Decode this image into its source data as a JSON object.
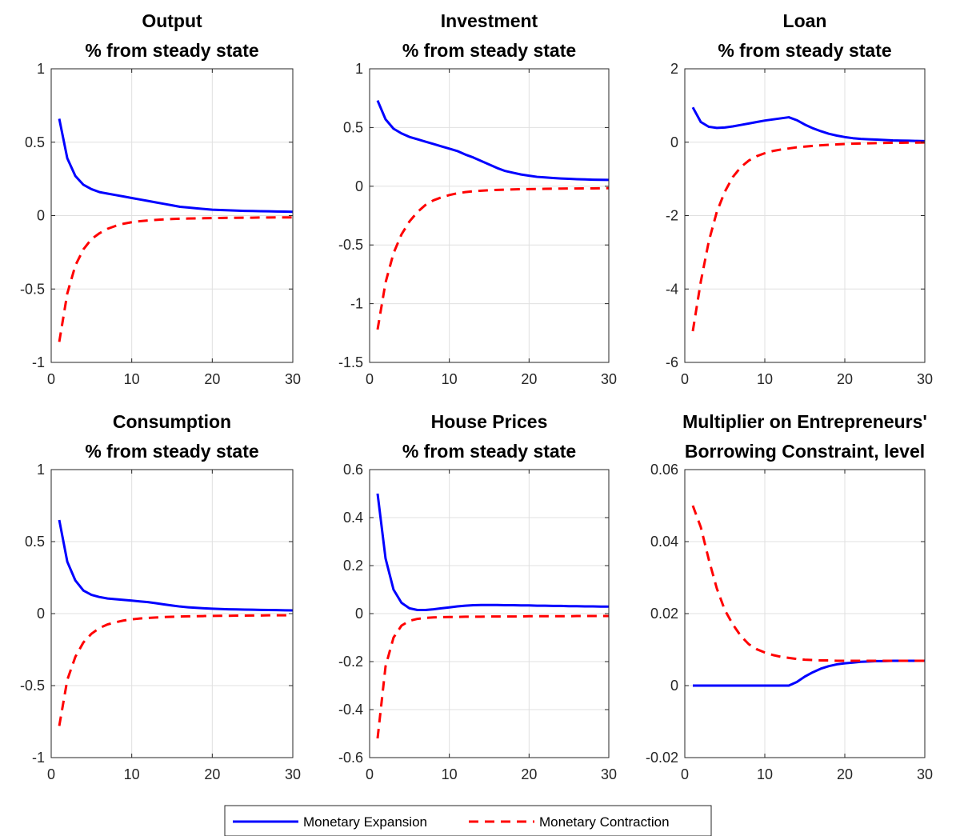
{
  "colors": {
    "expansion": "#0000ff",
    "contraction": "#ff0000",
    "grid": "#e0e0e0",
    "axis": "#262626"
  },
  "legend": {
    "placement": "bottom-center",
    "entries": [
      {
        "label": "Monetary Expansion",
        "color": "#0000ff",
        "style": "solid"
      },
      {
        "label": "Monetary Contraction",
        "color": "#ff0000",
        "style": "dashed"
      }
    ]
  },
  "chart_data": [
    {
      "type": "line",
      "title": [
        "Output",
        "% from steady state"
      ],
      "xlim": [
        0,
        30
      ],
      "ylim": [
        -1,
        1
      ],
      "xticks": [
        0,
        10,
        20,
        30
      ],
      "yticks": [
        -1,
        -0.5,
        0,
        0.5,
        1
      ],
      "ytick_labels": [
        "-1",
        "-0.5",
        "0",
        "0.5",
        "1"
      ],
      "grid": true,
      "series": [
        {
          "name": "Monetary Expansion",
          "x": [
            1,
            2,
            3,
            4,
            5,
            6,
            7,
            8,
            9,
            10,
            11,
            12,
            13,
            14,
            15,
            16,
            17,
            18,
            19,
            20,
            21,
            22,
            23,
            24,
            25,
            26,
            27,
            28,
            29,
            30
          ],
          "y": [
            0.66,
            0.39,
            0.27,
            0.21,
            0.18,
            0.16,
            0.15,
            0.14,
            0.13,
            0.12,
            0.11,
            0.1,
            0.09,
            0.08,
            0.07,
            0.06,
            0.055,
            0.05,
            0.045,
            0.04,
            0.038,
            0.036,
            0.034,
            0.032,
            0.031,
            0.03,
            0.029,
            0.028,
            0.027,
            0.026
          ]
        },
        {
          "name": "Monetary Contraction",
          "x": [
            1,
            2,
            3,
            4,
            5,
            6,
            7,
            8,
            9,
            10,
            11,
            12,
            13,
            14,
            15,
            16,
            17,
            18,
            19,
            20,
            21,
            22,
            23,
            24,
            25,
            26,
            27,
            28,
            29,
            30
          ],
          "y": [
            -0.86,
            -0.53,
            -0.34,
            -0.23,
            -0.16,
            -0.12,
            -0.09,
            -0.07,
            -0.055,
            -0.045,
            -0.038,
            -0.033,
            -0.029,
            -0.026,
            -0.023,
            -0.021,
            -0.02,
            -0.019,
            -0.018,
            -0.017,
            -0.016,
            -0.015,
            -0.015,
            -0.014,
            -0.014,
            -0.013,
            -0.013,
            -0.012,
            -0.012,
            -0.012
          ]
        }
      ]
    },
    {
      "type": "line",
      "title": [
        "Investment",
        "% from steady state"
      ],
      "xlim": [
        0,
        30
      ],
      "ylim": [
        -1.5,
        1
      ],
      "xticks": [
        0,
        10,
        20,
        30
      ],
      "yticks": [
        -1.5,
        -1,
        -0.5,
        0,
        0.5,
        1
      ],
      "ytick_labels": [
        "-1.5",
        "-1",
        "-0.5",
        "0",
        "0.5",
        "1"
      ],
      "grid": true,
      "series": [
        {
          "name": "Monetary Expansion",
          "x": [
            1,
            2,
            3,
            4,
            5,
            6,
            7,
            8,
            9,
            10,
            11,
            12,
            13,
            14,
            15,
            16,
            17,
            18,
            19,
            20,
            21,
            22,
            23,
            24,
            25,
            26,
            27,
            28,
            29,
            30
          ],
          "y": [
            0.73,
            0.57,
            0.49,
            0.45,
            0.42,
            0.4,
            0.38,
            0.36,
            0.34,
            0.32,
            0.3,
            0.27,
            0.245,
            0.215,
            0.185,
            0.155,
            0.13,
            0.115,
            0.1,
            0.09,
            0.08,
            0.075,
            0.07,
            0.066,
            0.063,
            0.06,
            0.058,
            0.056,
            0.055,
            0.054
          ]
        },
        {
          "name": "Monetary Contraction",
          "x": [
            1,
            2,
            3,
            4,
            5,
            6,
            7,
            8,
            9,
            10,
            11,
            12,
            13,
            14,
            15,
            16,
            17,
            18,
            19,
            20,
            21,
            22,
            23,
            24,
            25,
            26,
            27,
            28,
            29,
            30
          ],
          "y": [
            -1.22,
            -0.82,
            -0.57,
            -0.41,
            -0.3,
            -0.22,
            -0.16,
            -0.12,
            -0.095,
            -0.075,
            -0.06,
            -0.05,
            -0.043,
            -0.038,
            -0.034,
            -0.031,
            -0.029,
            -0.027,
            -0.025,
            -0.024,
            -0.023,
            -0.022,
            -0.021,
            -0.02,
            -0.019,
            -0.019,
            -0.018,
            -0.018,
            -0.017,
            -0.017
          ]
        }
      ]
    },
    {
      "type": "line",
      "title": [
        "Loan",
        "% from steady state"
      ],
      "xlim": [
        0,
        30
      ],
      "ylim": [
        -6,
        2
      ],
      "xticks": [
        0,
        10,
        20,
        30
      ],
      "yticks": [
        -6,
        -4,
        -2,
        0,
        2
      ],
      "ytick_labels": [
        "-6",
        "-4",
        "-2",
        "0",
        "2"
      ],
      "grid": true,
      "series": [
        {
          "name": "Monetary Expansion",
          "x": [
            1,
            2,
            3,
            4,
            5,
            6,
            7,
            8,
            9,
            10,
            11,
            12,
            13,
            14,
            15,
            16,
            17,
            18,
            19,
            20,
            21,
            22,
            23,
            24,
            25,
            26,
            27,
            28,
            29,
            30
          ],
          "y": [
            0.95,
            0.55,
            0.42,
            0.39,
            0.4,
            0.43,
            0.47,
            0.51,
            0.55,
            0.59,
            0.62,
            0.65,
            0.68,
            0.6,
            0.48,
            0.38,
            0.3,
            0.23,
            0.18,
            0.14,
            0.11,
            0.09,
            0.08,
            0.07,
            0.06,
            0.05,
            0.045,
            0.04,
            0.035,
            0.03
          ]
        },
        {
          "name": "Monetary Contraction",
          "x": [
            1,
            2,
            3,
            4,
            5,
            6,
            7,
            8,
            9,
            10,
            11,
            12,
            13,
            14,
            15,
            16,
            17,
            18,
            19,
            20,
            21,
            22,
            23,
            24,
            25,
            26,
            27,
            28,
            29,
            30
          ],
          "y": [
            -5.15,
            -3.8,
            -2.7,
            -1.9,
            -1.35,
            -0.95,
            -0.68,
            -0.5,
            -0.38,
            -0.3,
            -0.24,
            -0.2,
            -0.17,
            -0.14,
            -0.12,
            -0.1,
            -0.085,
            -0.07,
            -0.06,
            -0.05,
            -0.04,
            -0.035,
            -0.03,
            -0.025,
            -0.02,
            -0.017,
            -0.015,
            -0.012,
            -0.01,
            -0.008
          ]
        }
      ]
    },
    {
      "type": "line",
      "title": [
        "Consumption",
        "% from steady state"
      ],
      "xlim": [
        0,
        30
      ],
      "ylim": [
        -1,
        1
      ],
      "xticks": [
        0,
        10,
        20,
        30
      ],
      "yticks": [
        -1,
        -0.5,
        0,
        0.5,
        1
      ],
      "ytick_labels": [
        "-1",
        "-0.5",
        "0",
        "0.5",
        "1"
      ],
      "grid": true,
      "series": [
        {
          "name": "Monetary Expansion",
          "x": [
            1,
            2,
            3,
            4,
            5,
            6,
            7,
            8,
            9,
            10,
            11,
            12,
            13,
            14,
            15,
            16,
            17,
            18,
            19,
            20,
            21,
            22,
            23,
            24,
            25,
            26,
            27,
            28,
            29,
            30
          ],
          "y": [
            0.65,
            0.36,
            0.23,
            0.16,
            0.13,
            0.115,
            0.105,
            0.1,
            0.095,
            0.09,
            0.085,
            0.08,
            0.072,
            0.064,
            0.056,
            0.049,
            0.044,
            0.04,
            0.037,
            0.034,
            0.032,
            0.03,
            0.029,
            0.028,
            0.027,
            0.026,
            0.025,
            0.024,
            0.023,
            0.022
          ]
        },
        {
          "name": "Monetary Contraction",
          "x": [
            1,
            2,
            3,
            4,
            5,
            6,
            7,
            8,
            9,
            10,
            11,
            12,
            13,
            14,
            15,
            16,
            17,
            18,
            19,
            20,
            21,
            22,
            23,
            24,
            25,
            26,
            27,
            28,
            29,
            30
          ],
          "y": [
            -0.78,
            -0.46,
            -0.3,
            -0.2,
            -0.14,
            -0.1,
            -0.075,
            -0.06,
            -0.048,
            -0.04,
            -0.034,
            -0.03,
            -0.027,
            -0.024,
            -0.022,
            -0.02,
            -0.019,
            -0.018,
            -0.017,
            -0.016,
            -0.015,
            -0.015,
            -0.014,
            -0.014,
            -0.013,
            -0.013,
            -0.012,
            -0.012,
            -0.012,
            -0.011
          ]
        }
      ]
    },
    {
      "type": "line",
      "title": [
        "House Prices",
        "% from steady state"
      ],
      "xlim": [
        0,
        30
      ],
      "ylim": [
        -0.6,
        0.6
      ],
      "xticks": [
        0,
        10,
        20,
        30
      ],
      "yticks": [
        -0.6,
        -0.4,
        -0.2,
        0,
        0.2,
        0.4,
        0.6
      ],
      "ytick_labels": [
        "-0.6",
        "-0.4",
        "-0.2",
        "0",
        "0.2",
        "0.4",
        "0.6"
      ],
      "grid": true,
      "series": [
        {
          "name": "Monetary Expansion",
          "x": [
            1,
            2,
            3,
            4,
            5,
            6,
            7,
            8,
            9,
            10,
            11,
            12,
            13,
            14,
            15,
            16,
            17,
            18,
            19,
            20,
            21,
            22,
            23,
            24,
            25,
            26,
            27,
            28,
            29,
            30
          ],
          "y": [
            0.5,
            0.23,
            0.1,
            0.045,
            0.022,
            0.015,
            0.015,
            0.018,
            0.022,
            0.026,
            0.03,
            0.033,
            0.035,
            0.036,
            0.036,
            0.036,
            0.035,
            0.035,
            0.034,
            0.034,
            0.033,
            0.033,
            0.032,
            0.032,
            0.031,
            0.031,
            0.03,
            0.03,
            0.029,
            0.029
          ]
        },
        {
          "name": "Monetary Contraction",
          "x": [
            1,
            2,
            3,
            4,
            5,
            6,
            7,
            8,
            9,
            10,
            11,
            12,
            13,
            14,
            15,
            16,
            17,
            18,
            19,
            20,
            21,
            22,
            23,
            24,
            25,
            26,
            27,
            28,
            29,
            30
          ],
          "y": [
            -0.52,
            -0.22,
            -0.1,
            -0.05,
            -0.03,
            -0.022,
            -0.018,
            -0.016,
            -0.015,
            -0.014,
            -0.014,
            -0.013,
            -0.013,
            -0.013,
            -0.012,
            -0.012,
            -0.012,
            -0.012,
            -0.012,
            -0.011,
            -0.011,
            -0.011,
            -0.011,
            -0.011,
            -0.011,
            -0.01,
            -0.01,
            -0.01,
            -0.01,
            -0.01
          ]
        }
      ]
    },
    {
      "type": "line",
      "title": [
        "Multiplier on Entrepreneurs'",
        "Borrowing Constraint, level"
      ],
      "xlim": [
        0,
        30
      ],
      "ylim": [
        -0.02,
        0.06
      ],
      "xticks": [
        0,
        10,
        20,
        30
      ],
      "yticks": [
        -0.02,
        0,
        0.02,
        0.04,
        0.06
      ],
      "ytick_labels": [
        "-0.02",
        "0",
        "0.02",
        "0.04",
        "0.06"
      ],
      "grid": true,
      "series": [
        {
          "name": "Monetary Expansion",
          "x": [
            1,
            2,
            3,
            4,
            5,
            6,
            7,
            8,
            9,
            10,
            11,
            12,
            13,
            14,
            15,
            16,
            17,
            18,
            19,
            20,
            21,
            22,
            23,
            24,
            25,
            26,
            27,
            28,
            29,
            30
          ],
          "y": [
            0,
            0,
            0,
            0,
            0,
            0,
            0,
            0,
            0,
            0,
            0,
            0,
            0,
            0.001,
            0.0025,
            0.0037,
            0.0047,
            0.0054,
            0.0059,
            0.0062,
            0.0064,
            0.0066,
            0.0067,
            0.0068,
            0.0068,
            0.0069,
            0.0069,
            0.0069,
            0.0069,
            0.0069
          ]
        },
        {
          "name": "Monetary Contraction",
          "x": [
            1,
            2,
            3,
            4,
            5,
            6,
            7,
            8,
            9,
            10,
            11,
            12,
            13,
            14,
            15,
            16,
            17,
            18,
            19,
            20,
            21,
            22,
            23,
            24,
            25,
            26,
            27,
            28,
            29,
            30
          ],
          "y": [
            0.05,
            0.044,
            0.035,
            0.027,
            0.021,
            0.017,
            0.0138,
            0.0115,
            0.0101,
            0.0092,
            0.0085,
            0.008,
            0.0077,
            0.0074,
            0.0072,
            0.0071,
            0.007,
            0.007,
            0.0069,
            0.0069,
            0.0069,
            0.0069,
            0.0069,
            0.0069,
            0.0069,
            0.0069,
            0.0069,
            0.0069,
            0.0069,
            0.0069
          ]
        }
      ]
    }
  ]
}
